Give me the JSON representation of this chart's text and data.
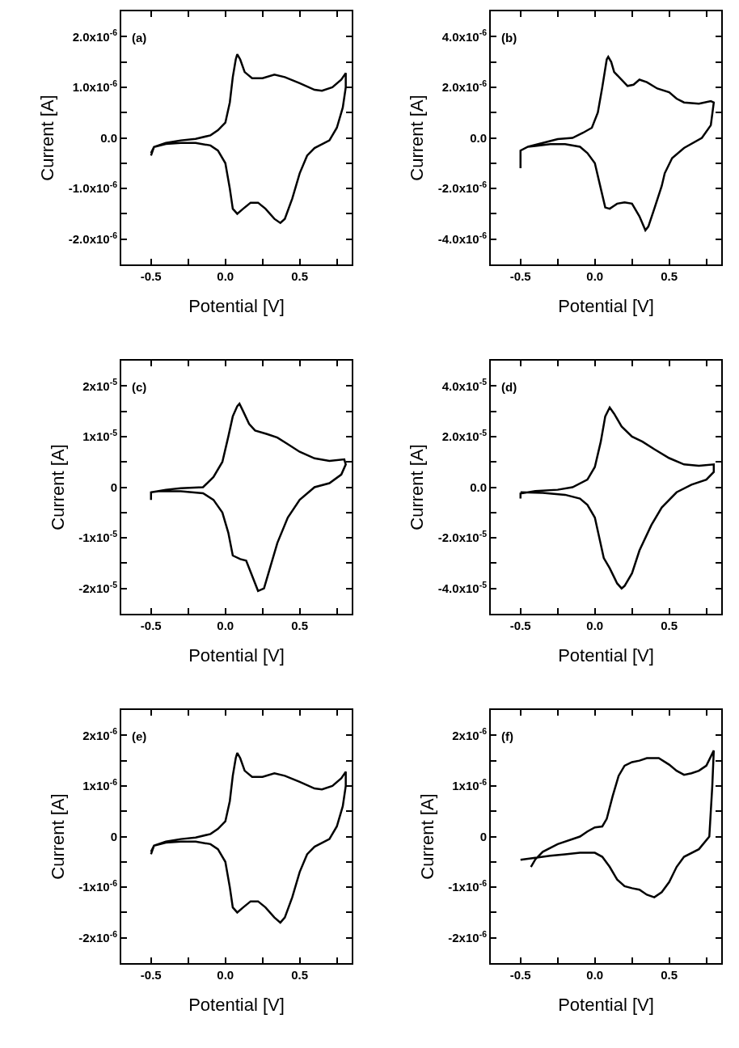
{
  "chart_data": [
    {
      "type": "line",
      "xlabel": "Potential [V]",
      "ylabel": "Current [A]",
      "annotations": [
        "(a)"
      ],
      "color": "#000000",
      "x": [
        -0.5,
        -0.48,
        -0.4,
        -0.3,
        -0.2,
        -0.1,
        -0.05,
        0,
        0.03,
        0.05,
        0.07,
        0.08,
        0.1,
        0.13,
        0.18,
        0.25,
        0.33,
        0.4,
        0.5,
        0.6,
        0.65,
        0.72,
        0.78,
        0.81,
        0.81,
        0.79,
        0.75,
        0.7,
        0.6,
        0.55,
        0.5,
        0.45,
        0.4,
        0.37,
        0.33,
        0.27,
        0.22,
        0.17,
        0.12,
        0.08,
        0.05,
        0.03,
        0,
        -0.05,
        -0.1,
        -0.2,
        -0.3,
        -0.4,
        -0.48,
        -0.5
      ],
      "values": [
        -3.5e-07,
        -1.8e-07,
        -1e-07,
        -5e-08,
        -2e-08,
        5e-08,
        1.5e-07,
        3e-07,
        7e-07,
        1.2e-06,
        1.55e-06,
        1.65e-06,
        1.55e-06,
        1.3e-06,
        1.18e-06,
        1.18e-06,
        1.25e-06,
        1.2e-06,
        1.08e-06,
        9.5e-07,
        9.3e-07,
        1e-06,
        1.15e-06,
        1.28e-06,
        1e-06,
        6e-07,
        2e-07,
        -5e-08,
        -2e-07,
        -3.5e-07,
        -7e-07,
        -1.2e-06,
        -1.6e-06,
        -1.68e-06,
        -1.6e-06,
        -1.4e-06,
        -1.28e-06,
        -1.28e-06,
        -1.4e-06,
        -1.5e-06,
        -1.4e-06,
        -1e-06,
        -5e-07,
        -2.5e-07,
        -1.5e-07,
        -1e-07,
        -1e-07,
        -1.2e-07,
        -1.8e-07,
        -3e-07
      ],
      "xlim": [
        -0.7,
        0.85
      ],
      "xticks": [
        {
          "value": -0.5,
          "label": "-0.5"
        },
        {
          "value": -0.25,
          "label": null
        },
        {
          "value": 0,
          "label": "0.0"
        },
        {
          "value": 0.25,
          "label": null
        },
        {
          "value": 0.5,
          "label": "0.5"
        },
        {
          "value": 0.75,
          "label": null
        }
      ],
      "ylim": [
        -2.5e-06,
        2.5e-06
      ],
      "yticks": [
        {
          "value": -2e-06,
          "label": "-2.0x10$^{-6}$"
        },
        {
          "value": -1.5e-06,
          "label": null
        },
        {
          "value": -1e-06,
          "label": "-1.0x10$^{-6}$"
        },
        {
          "value": -5e-07,
          "label": null
        },
        {
          "value": 0,
          "label": "0.0"
        },
        {
          "value": 5e-07,
          "label": null
        },
        {
          "value": 1e-06,
          "label": "1.0x10$^{-6}$"
        },
        {
          "value": 1.5e-06,
          "label": null
        },
        {
          "value": 2e-06,
          "label": "2.0x10$^{-6}$"
        }
      ]
    },
    {
      "type": "line",
      "xlabel": "Potential [V]",
      "ylabel": "Current [A]",
      "annotations": [
        "(b)"
      ],
      "color": "#000000",
      "x": [
        -0.5,
        -0.5,
        -0.45,
        -0.35,
        -0.25,
        -0.15,
        -0.08,
        -0.02,
        0.02,
        0.05,
        0.08,
        0.09,
        0.11,
        0.13,
        0.18,
        0.22,
        0.26,
        0.3,
        0.35,
        0.42,
        0.5,
        0.55,
        0.6,
        0.7,
        0.78,
        0.8,
        0.78,
        0.72,
        0.6,
        0.52,
        0.47,
        0.45,
        0.4,
        0.36,
        0.34,
        0.3,
        0.25,
        0.2,
        0.15,
        0.1,
        0.07,
        0.04,
        0,
        -0.05,
        -0.1,
        -0.2,
        -0.3,
        -0.4,
        -0.45
      ],
      "values": [
        -1.2e-06,
        -5e-07,
        -3.5e-07,
        -2e-07,
        -5e-08,
        0,
        2e-07,
        4e-07,
        1e-06,
        2e-06,
        3.1e-06,
        3.2e-06,
        3e-06,
        2.6e-06,
        2.3e-06,
        2.05e-06,
        2.1e-06,
        2.3e-06,
        2.2e-06,
        1.95e-06,
        1.8e-06,
        1.55e-06,
        1.4e-06,
        1.35e-06,
        1.45e-06,
        1.4e-06,
        5e-07,
        0,
        -4e-07,
        -8e-07,
        -1.4e-06,
        -1.9e-06,
        -2.8e-06,
        -3.5e-06,
        -3.65e-06,
        -3.1e-06,
        -2.6e-06,
        -2.55e-06,
        -2.6e-06,
        -2.8e-06,
        -2.75e-06,
        -2e-06,
        -1e-06,
        -6e-07,
        -3.5e-07,
        -2.5e-07,
        -2.5e-07,
        -3.2e-07,
        -3.5e-07
      ],
      "xlim": [
        -0.7,
        0.85
      ],
      "xticks": [
        {
          "value": -0.5,
          "label": "-0.5"
        },
        {
          "value": -0.25,
          "label": null
        },
        {
          "value": 0,
          "label": "0.0"
        },
        {
          "value": 0.25,
          "label": null
        },
        {
          "value": 0.5,
          "label": "0.5"
        },
        {
          "value": 0.75,
          "label": null
        }
      ],
      "ylim": [
        -5e-06,
        5e-06
      ],
      "yticks": [
        {
          "value": -4e-06,
          "label": "-4.0x10$^{-6}$"
        },
        {
          "value": -3e-06,
          "label": null
        },
        {
          "value": -2e-06,
          "label": "-2.0x10$^{-6}$"
        },
        {
          "value": -1e-06,
          "label": null
        },
        {
          "value": 0,
          "label": "0.0"
        },
        {
          "value": 1e-06,
          "label": null
        },
        {
          "value": 2e-06,
          "label": "2.0x10$^{-6}$"
        },
        {
          "value": 3e-06,
          "label": null
        },
        {
          "value": 4e-06,
          "label": "4.0x10$^{-6}$"
        }
      ]
    },
    {
      "type": "line",
      "xlabel": "Potential [V]",
      "ylabel": "Current [A]",
      "annotations": [
        "(c)"
      ],
      "color": "#000000",
      "x": [
        -0.5,
        -0.5,
        -0.4,
        -0.3,
        -0.15,
        -0.08,
        -0.02,
        0.02,
        0.05,
        0.08,
        0.095,
        0.12,
        0.16,
        0.2,
        0.28,
        0.35,
        0.42,
        0.5,
        0.6,
        0.7,
        0.8,
        0.81,
        0.78,
        0.7,
        0.6,
        0.5,
        0.42,
        0.35,
        0.3,
        0.26,
        0.22,
        0.18,
        0.14,
        0.1,
        0.05,
        0.02,
        -0.02,
        -0.08,
        -0.15,
        -0.3,
        -0.45,
        -0.5
      ],
      "values": [
        -2.5e-06,
        -1e-06,
        -5e-07,
        -2e-07,
        0,
        2e-06,
        5e-06,
        1e-05,
        1.4e-05,
        1.6e-05,
        1.65e-05,
        1.5e-05,
        1.25e-05,
        1.12e-05,
        1.05e-05,
        9.8e-06,
        8.5e-06,
        7e-06,
        5.7e-06,
        5.2e-06,
        5.5e-06,
        4.5e-06,
        2.5e-06,
        8e-07,
        0,
        -2.5e-06,
        -6e-06,
        -1.1e-05,
        -1.6e-05,
        -2e-05,
        -2.05e-05,
        -1.75e-05,
        -1.45e-05,
        -1.42e-05,
        -1.35e-05,
        -9e-06,
        -5e-06,
        -2.5e-06,
        -1.2e-06,
        -8e-07,
        -8e-07,
        -1e-06
      ],
      "xlim": [
        -0.7,
        0.85
      ],
      "xticks": [
        {
          "value": -0.5,
          "label": "-0.5"
        },
        {
          "value": -0.25,
          "label": null
        },
        {
          "value": 0,
          "label": "0.0"
        },
        {
          "value": 0.25,
          "label": null
        },
        {
          "value": 0.5,
          "label": "0.5"
        },
        {
          "value": 0.75,
          "label": null
        }
      ],
      "ylim": [
        -2.5e-05,
        2.5e-05
      ],
      "yticks": [
        {
          "value": -2e-05,
          "label": "-2x10$^{-5}$"
        },
        {
          "value": -1.5e-05,
          "label": null
        },
        {
          "value": -1e-05,
          "label": "-1x10$^{-5}$"
        },
        {
          "value": -5e-06,
          "label": null
        },
        {
          "value": 0,
          "label": "0"
        },
        {
          "value": 5e-06,
          "label": null
        },
        {
          "value": 1e-05,
          "label": "1x10$^{-5}$"
        },
        {
          "value": 1.5e-05,
          "label": null
        },
        {
          "value": 2e-05,
          "label": "2x10$^{-5}$"
        }
      ]
    },
    {
      "type": "line",
      "xlabel": "Potential [V]",
      "ylabel": "Current [A]",
      "annotations": [
        "(d)"
      ],
      "color": "#000000",
      "x": [
        -0.5,
        -0.5,
        -0.4,
        -0.25,
        -0.15,
        -0.05,
        0,
        0.04,
        0.07,
        0.1,
        0.13,
        0.18,
        0.25,
        0.32,
        0.4,
        0.5,
        0.6,
        0.7,
        0.8,
        0.8,
        0.75,
        0.65,
        0.55,
        0.45,
        0.38,
        0.3,
        0.25,
        0.2,
        0.18,
        0.15,
        0.1,
        0.06,
        0.03,
        0,
        -0.05,
        -0.1,
        -0.2,
        -0.35,
        -0.5
      ],
      "values": [
        -4.5e-06,
        -2.5e-06,
        -1.5e-06,
        -1e-06,
        0,
        3e-06,
        8e-06,
        1.8e-05,
        2.8e-05,
        3.15e-05,
        2.9e-05,
        2.4e-05,
        2e-05,
        1.8e-05,
        1.5e-05,
        1.15e-05,
        9e-06,
        8.5e-06,
        9e-06,
        6e-06,
        3e-06,
        1e-06,
        -2e-06,
        -8e-06,
        -1.5e-05,
        -2.5e-05,
        -3.4e-05,
        -3.9e-05,
        -4e-05,
        -3.8e-05,
        -3.2e-05,
        -2.8e-05,
        -2e-05,
        -1.2e-05,
        -7e-06,
        -4.5e-06,
        -3e-06,
        -2.2e-06,
        -2e-06
      ],
      "xlim": [
        -0.7,
        0.85
      ],
      "xticks": [
        {
          "value": -0.5,
          "label": "-0.5"
        },
        {
          "value": -0.25,
          "label": null
        },
        {
          "value": 0,
          "label": "0.0"
        },
        {
          "value": 0.25,
          "label": null
        },
        {
          "value": 0.5,
          "label": "0.5"
        },
        {
          "value": 0.75,
          "label": null
        }
      ],
      "ylim": [
        -5e-05,
        5e-05
      ],
      "yticks": [
        {
          "value": -4e-05,
          "label": "-4.0x10$^{-5}$"
        },
        {
          "value": -3e-05,
          "label": null
        },
        {
          "value": -2e-05,
          "label": "-2.0x10$^{-5}$"
        },
        {
          "value": -1e-05,
          "label": null
        },
        {
          "value": 0,
          "label": "0.0"
        },
        {
          "value": 1e-05,
          "label": null
        },
        {
          "value": 2e-05,
          "label": "2.0x10$^{-5}$"
        },
        {
          "value": 3e-05,
          "label": null
        },
        {
          "value": 4e-05,
          "label": "4.0x10$^{-5}$"
        }
      ]
    },
    {
      "type": "line",
      "xlabel": "Potential [V]",
      "ylabel": "Current [A]",
      "annotations": [
        "(e)"
      ],
      "color": "#000000",
      "x": [
        -0.5,
        -0.48,
        -0.4,
        -0.3,
        -0.2,
        -0.1,
        -0.05,
        0,
        0.03,
        0.05,
        0.07,
        0.08,
        0.1,
        0.13,
        0.18,
        0.25,
        0.33,
        0.4,
        0.5,
        0.6,
        0.65,
        0.72,
        0.78,
        0.81,
        0.81,
        0.79,
        0.75,
        0.7,
        0.6,
        0.55,
        0.5,
        0.45,
        0.4,
        0.37,
        0.33,
        0.27,
        0.22,
        0.17,
        0.12,
        0.08,
        0.05,
        0.03,
        0,
        -0.05,
        -0.1,
        -0.2,
        -0.3,
        -0.4,
        -0.48,
        -0.5
      ],
      "values": [
        -3.5e-07,
        -1.8e-07,
        -1e-07,
        -5e-08,
        -2e-08,
        5e-08,
        1.5e-07,
        3e-07,
        7e-07,
        1.2e-06,
        1.55e-06,
        1.65e-06,
        1.55e-06,
        1.3e-06,
        1.18e-06,
        1.18e-06,
        1.25e-06,
        1.2e-06,
        1.08e-06,
        9.5e-07,
        9.3e-07,
        1e-06,
        1.15e-06,
        1.28e-06,
        1e-06,
        6e-07,
        2e-07,
        -5e-08,
        -2e-07,
        -3.5e-07,
        -7e-07,
        -1.2e-06,
        -1.6e-06,
        -1.7e-06,
        -1.6e-06,
        -1.4e-06,
        -1.28e-06,
        -1.28e-06,
        -1.4e-06,
        -1.5e-06,
        -1.4e-06,
        -1e-06,
        -5e-07,
        -2.5e-07,
        -1.5e-07,
        -1e-07,
        -1e-07,
        -1.2e-07,
        -1.8e-07,
        -3e-07
      ],
      "xlim": [
        -0.7,
        0.85
      ],
      "xticks": [
        {
          "value": -0.5,
          "label": "-0.5"
        },
        {
          "value": -0.25,
          "label": null
        },
        {
          "value": 0,
          "label": "0.0"
        },
        {
          "value": 0.25,
          "label": null
        },
        {
          "value": 0.5,
          "label": "0.5"
        },
        {
          "value": 0.75,
          "label": null
        }
      ],
      "ylim": [
        -2.5e-06,
        2.5e-06
      ],
      "yticks": [
        {
          "value": -2e-06,
          "label": "-2x10$^{-6}$"
        },
        {
          "value": -1.5e-06,
          "label": null
        },
        {
          "value": -1e-06,
          "label": "-1x10$^{-6}$"
        },
        {
          "value": -5e-07,
          "label": null
        },
        {
          "value": 0,
          "label": "0"
        },
        {
          "value": 5e-07,
          "label": null
        },
        {
          "value": 1e-06,
          "label": "1x10$^{-6}$"
        },
        {
          "value": 1.5e-06,
          "label": null
        },
        {
          "value": 2e-06,
          "label": "2x10$^{-6}$"
        }
      ]
    },
    {
      "type": "line",
      "xlabel": "Potential [V]",
      "ylabel": "Current [A]",
      "annotations": [
        "(f)"
      ],
      "color": "#000000",
      "x": [
        -0.43,
        -0.4,
        -0.35,
        -0.25,
        -0.1,
        -0.05,
        0,
        0.05,
        0.08,
        0.12,
        0.16,
        0.2,
        0.25,
        0.3,
        0.35,
        0.43,
        0.5,
        0.55,
        0.6,
        0.65,
        0.7,
        0.75,
        0.8,
        0.79,
        0.77,
        0.7,
        0.6,
        0.55,
        0.5,
        0.45,
        0.4,
        0.35,
        0.3,
        0.25,
        0.2,
        0.15,
        0.1,
        0.05,
        0,
        -0.1,
        -0.2,
        -0.3,
        -0.4,
        -0.5
      ],
      "values": [
        -6e-07,
        -4.5e-07,
        -3e-07,
        -1.5e-07,
        0,
        1e-07,
        1.8e-07,
        2e-07,
        3.5e-07,
        8e-07,
        1.2e-06,
        1.4e-06,
        1.47e-06,
        1.5e-06,
        1.55e-06,
        1.55e-06,
        1.42e-06,
        1.3e-06,
        1.22e-06,
        1.25e-06,
        1.3e-06,
        1.4e-06,
        1.7e-06,
        1e-06,
        0,
        -2.5e-07,
        -4e-07,
        -6e-07,
        -9e-07,
        -1.1e-06,
        -1.2e-06,
        -1.15e-06,
        -1.05e-06,
        -1.02e-06,
        -9.8e-07,
        -8.5e-07,
        -6e-07,
        -4e-07,
        -3.2e-07,
        -3.2e-07,
        -3.5e-07,
        -3.8e-07,
        -4.2e-07,
        -4.6e-07
      ],
      "xlim": [
        -0.7,
        0.85
      ],
      "xticks": [
        {
          "value": -0.5,
          "label": "-0.5"
        },
        {
          "value": -0.25,
          "label": null
        },
        {
          "value": 0,
          "label": "0.0"
        },
        {
          "value": 0.25,
          "label": null
        },
        {
          "value": 0.5,
          "label": "0.5"
        },
        {
          "value": 0.75,
          "label": null
        }
      ],
      "ylim": [
        -2.5e-06,
        2.5e-06
      ],
      "yticks": [
        {
          "value": -2e-06,
          "label": "-2x10$^{-6}$"
        },
        {
          "value": -1.5e-06,
          "label": null
        },
        {
          "value": -1e-06,
          "label": "-1x10$^{-6}$"
        },
        {
          "value": -5e-07,
          "label": null
        },
        {
          "value": 0,
          "label": "0"
        },
        {
          "value": 5e-07,
          "label": null
        },
        {
          "value": 1e-06,
          "label": "1x10$^{-6}$"
        },
        {
          "value": 1.5e-06,
          "label": null
        },
        {
          "value": 2e-06,
          "label": "2x10$^{-6}$"
        }
      ]
    }
  ]
}
